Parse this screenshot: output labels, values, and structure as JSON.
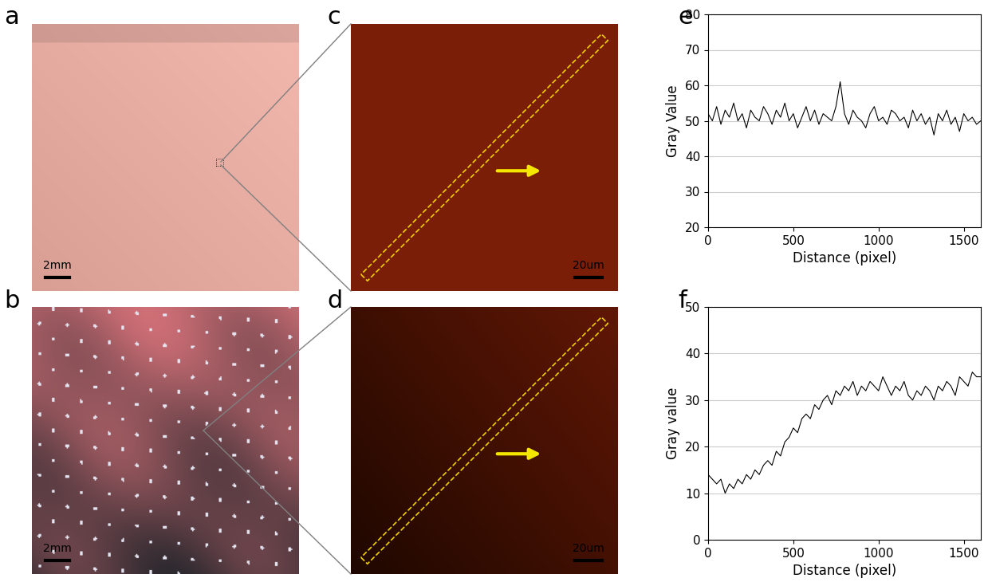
{
  "panels": [
    {
      "label": "a",
      "scale_bar": "2mm"
    },
    {
      "label": "b",
      "scale_bar": "2mm"
    },
    {
      "label": "c",
      "scale_bar": "20um"
    },
    {
      "label": "d",
      "scale_bar": "20um"
    }
  ],
  "chart_data": [
    {
      "type": "line",
      "title": "e",
      "x_label": "Distance (pixel)",
      "y_label": "Gray Value",
      "x": [
        0,
        25,
        50,
        75,
        100,
        125,
        150,
        175,
        200,
        225,
        250,
        275,
        300,
        325,
        350,
        375,
        400,
        425,
        450,
        475,
        500,
        525,
        550,
        575,
        600,
        625,
        650,
        675,
        700,
        725,
        750,
        775,
        800,
        825,
        850,
        875,
        900,
        925,
        950,
        975,
        1000,
        1025,
        1050,
        1075,
        1100,
        1125,
        1150,
        1175,
        1200,
        1225,
        1250,
        1275,
        1300,
        1325,
        1350,
        1375,
        1400,
        1425,
        1450,
        1475,
        1500,
        1525,
        1550,
        1575,
        1600
      ],
      "values": [
        52,
        50,
        54,
        49,
        53,
        51,
        55,
        50,
        52,
        48,
        53,
        51,
        50,
        54,
        52,
        49,
        53,
        51,
        55,
        50,
        52,
        48,
        51,
        54,
        50,
        53,
        49,
        52,
        51,
        50,
        54,
        61,
        52,
        49,
        53,
        51,
        50,
        48,
        52,
        54,
        50,
        51,
        49,
        53,
        52,
        50,
        51,
        48,
        53,
        50,
        52,
        49,
        51,
        46,
        52,
        50,
        53,
        49,
        51,
        47,
        52,
        50,
        51,
        49,
        50
      ],
      "color": "#000000",
      "xlim": [
        0,
        1600
      ],
      "xticks": [
        0,
        500,
        1000,
        1500
      ],
      "ylim": [
        20,
        80
      ],
      "yticks": [
        20,
        30,
        40,
        50,
        60,
        70,
        80
      ],
      "grid": true
    },
    {
      "type": "line",
      "title": "f",
      "x_label": "Distance (pixel)",
      "y_label": "Gray value",
      "x": [
        0,
        25,
        50,
        75,
        100,
        125,
        150,
        175,
        200,
        225,
        250,
        275,
        300,
        325,
        350,
        375,
        400,
        425,
        450,
        475,
        500,
        525,
        550,
        575,
        600,
        625,
        650,
        675,
        700,
        725,
        750,
        775,
        800,
        825,
        850,
        875,
        900,
        925,
        950,
        975,
        1000,
        1025,
        1050,
        1075,
        1100,
        1125,
        1150,
        1175,
        1200,
        1225,
        1250,
        1275,
        1300,
        1325,
        1350,
        1375,
        1400,
        1425,
        1450,
        1475,
        1500,
        1525,
        1550,
        1575,
        1600
      ],
      "values": [
        14,
        13,
        12,
        13,
        10,
        12,
        11,
        13,
        12,
        14,
        13,
        15,
        14,
        16,
        17,
        16,
        19,
        18,
        21,
        22,
        24,
        23,
        26,
        27,
        26,
        29,
        28,
        30,
        31,
        29,
        32,
        31,
        33,
        32,
        34,
        31,
        33,
        32,
        34,
        33,
        32,
        35,
        33,
        31,
        33,
        32,
        34,
        31,
        30,
        32,
        31,
        33,
        32,
        30,
        33,
        32,
        34,
        33,
        31,
        35,
        34,
        33,
        36,
        35,
        35
      ],
      "color": "#000000",
      "xlim": [
        0,
        1600
      ],
      "xticks": [
        0,
        500,
        1000,
        1500
      ],
      "ylim": [
        0,
        50
      ],
      "yticks": [
        0,
        10,
        20,
        30,
        40,
        50
      ],
      "grid": true
    }
  ]
}
